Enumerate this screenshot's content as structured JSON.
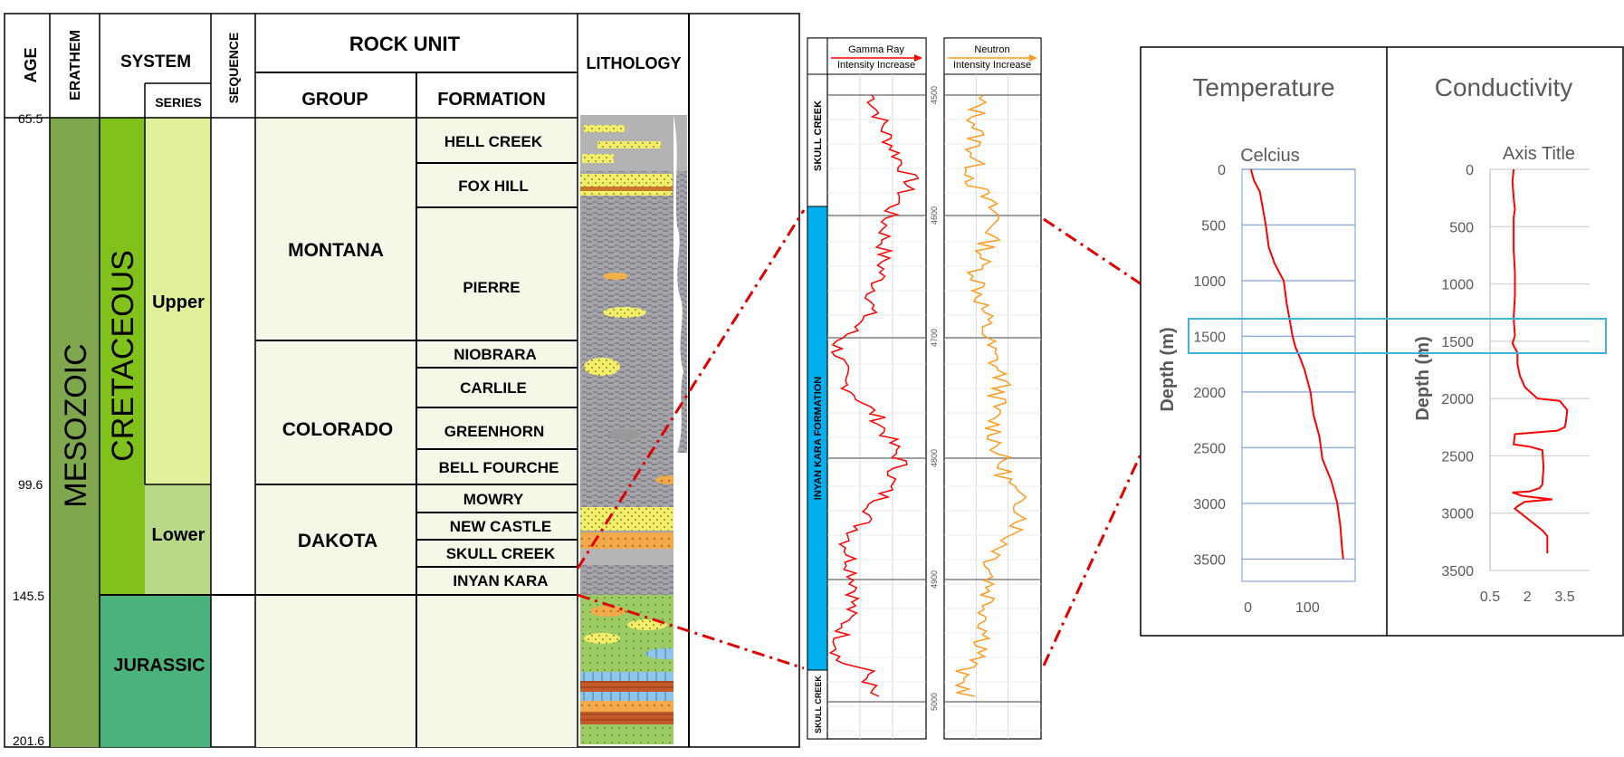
{
  "strat": {
    "headers": {
      "age": "AGE",
      "erathem": "ERATHEM",
      "system": "SYSTEM",
      "series": "SERIES",
      "sequence": "SEQUENCE",
      "rock_unit": "ROCK UNIT",
      "group": "GROUP",
      "formation": "FORMATION",
      "lithology": "LITHOLOGY"
    },
    "ages": [
      "65.5",
      "99.6",
      "145.5",
      "201.6"
    ],
    "erathem": "MESOZOIC",
    "systems": [
      "CRETACEOUS",
      "JURASSIC"
    ],
    "series": [
      "Upper",
      "Lower"
    ],
    "groups": [
      "MONTANA",
      "COLORADO",
      "DAKOTA"
    ],
    "formations": [
      "HELL CREEK",
      "FOX HILL",
      "PIERRE",
      "NIOBRARA",
      "CARLILE",
      "GREENHORN",
      "BELL FOURCHE",
      "MOWRY",
      "NEW CASTLE",
      "SKULL CREEK",
      "INYAN KARA"
    ],
    "colors": {
      "erathem": "#7fa84e",
      "cretaceous": "#80c11c",
      "upper": "#e0ef9a",
      "lower": "#b9da89",
      "jurassic": "#4ab37b",
      "rock": "#f5f8e6",
      "inyan": "#00b0f0",
      "gamma": "#ff0000",
      "neutron": "#ff9a1e"
    }
  },
  "logs": {
    "depth_ticks": [
      "4500",
      "4600",
      "4700",
      "4800",
      "4900",
      "5000"
    ],
    "units": [
      "SKULL CREEK",
      "INYAN KARA FORMATION",
      "SKULL CREEK"
    ],
    "gamma": {
      "title": "Gamma Ray",
      "subtitle": "Intensity Increase"
    },
    "neutron": {
      "title": "Neutron",
      "subtitle": "Intensity Increase"
    }
  },
  "charts": {
    "temperature": {
      "title": "Temperature",
      "axis_title": "Celcius",
      "ylabel": "Depth (m)",
      "xticks": [
        "0",
        "100"
      ]
    },
    "conductivity": {
      "title": "Conductivity",
      "axis_title": "Axis Title",
      "ylabel": "Depth (m)",
      "xticks": [
        "0.5",
        "2",
        "3.5"
      ]
    },
    "yticks": [
      "0",
      "500",
      "1000",
      "1500",
      "2000",
      "2500",
      "3000",
      "3500"
    ]
  },
  "chart_data": [
    {
      "type": "line",
      "title": "Temperature",
      "xlabel": "Celcius",
      "ylabel": "Depth (m)",
      "xlim": [
        0,
        180
      ],
      "ylim": [
        3700,
        0
      ],
      "series": [
        {
          "x": [
            5,
            10,
            20,
            25,
            30,
            35,
            45,
            60,
            65,
            70,
            75,
            80,
            88,
            95,
            100,
            105,
            110,
            120,
            125,
            140,
            150,
            155,
            158,
            160
          ],
          "y": [
            0,
            100,
            200,
            350,
            500,
            700,
            850,
            1000,
            1200,
            1350,
            1500,
            1600,
            1700,
            1800,
            1900,
            2000,
            2200,
            2400,
            2600,
            2800,
            3000,
            3200,
            3400,
            3500
          ]
        }
      ]
    },
    {
      "type": "line",
      "title": "Conductivity",
      "xlabel": "Axis Title",
      "ylabel": "Depth (m)",
      "xlim": [
        0.5,
        4.5
      ],
      "ylim": [
        3500,
        0
      ],
      "series": [
        {
          "x": [
            1.45,
            1.4,
            1.45,
            1.5,
            1.45,
            1.45,
            1.5,
            1.5,
            1.45,
            1.5,
            1.4,
            1.6,
            1.6,
            1.7,
            1.9,
            2.4,
            3.3,
            3.6,
            3.55,
            3.5,
            3.2,
            1.5,
            1.45,
            2.1,
            2.6,
            2.65,
            2.6,
            2.5,
            2.1,
            1.4,
            1.8,
            3.0,
            1.9,
            1.6,
            1.5,
            2.6,
            2.8,
            2.8
          ],
          "y": [
            0,
            100,
            250,
            350,
            420,
            700,
            900,
            1100,
            1300,
            1450,
            1520,
            1600,
            1700,
            1800,
            1900,
            2000,
            2020,
            2100,
            2200,
            2250,
            2280,
            2310,
            2400,
            2420,
            2450,
            2600,
            2750,
            2780,
            2810,
            2820,
            2850,
            2880,
            2900,
            2940,
            2960,
            3150,
            3200,
            3350
          ]
        }
      ]
    }
  ]
}
